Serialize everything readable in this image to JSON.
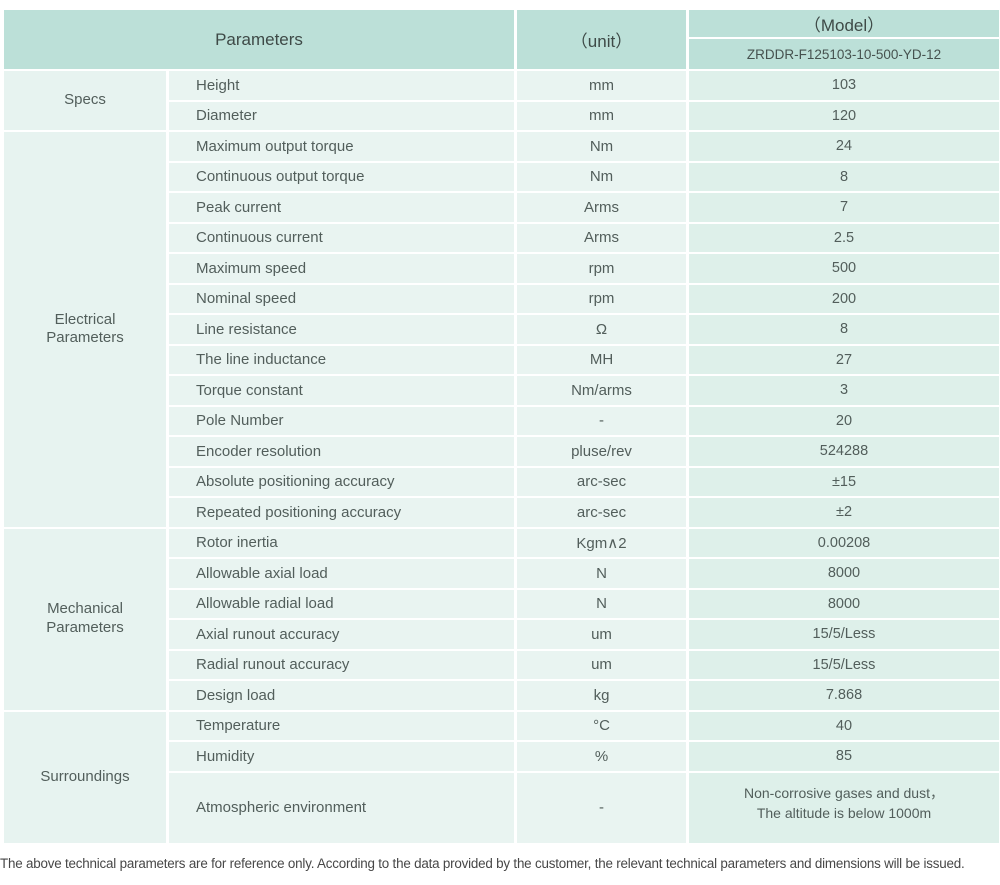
{
  "header": {
    "parameters_label": "Parameters",
    "unit_label": "（unit）",
    "model_label": "（Model）",
    "model_number": "ZRDDR-F125103-10-500-YD-12"
  },
  "sections": [
    {
      "group": "Specs",
      "rows": [
        {
          "param": "Height",
          "unit": "mm",
          "value": "103"
        },
        {
          "param": "Diameter",
          "unit": "mm",
          "value": "120"
        }
      ]
    },
    {
      "group": "Electrical\nParameters",
      "rows": [
        {
          "param": "Maximum output torque",
          "unit": "Nm",
          "value": "24"
        },
        {
          "param": "Continuous output torque",
          "unit": "Nm",
          "value": "8"
        },
        {
          "param": "Peak current",
          "unit": "Arms",
          "value": "7"
        },
        {
          "param": "Continuous current",
          "unit": "Arms",
          "value": "2.5"
        },
        {
          "param": "Maximum speed",
          "unit": "rpm",
          "value": "500"
        },
        {
          "param": "Nominal speed",
          "unit": "rpm",
          "value": "200"
        },
        {
          "param": "Line resistance",
          "unit": "Ω",
          "value": "8"
        },
        {
          "param": "The line inductance",
          "unit": "MH",
          "value": "27"
        },
        {
          "param": "Torque constant",
          "unit": "Nm/arms",
          "value": "3"
        },
        {
          "param": "Pole Number",
          "unit": "-",
          "value": "20"
        },
        {
          "param": "Encoder resolution",
          "unit": "pluse/rev",
          "value": "524288"
        },
        {
          "param": "Absolute positioning accuracy",
          "unit": "arc-sec",
          "value": "±15"
        },
        {
          "param": "Repeated positioning accuracy",
          "unit": "arc-sec",
          "value": "±2"
        }
      ]
    },
    {
      "group": "Mechanical\nParameters",
      "rows": [
        {
          "param": "Rotor inertia",
          "unit": "Kgm∧2",
          "value": "0.00208"
        },
        {
          "param": "Allowable axial load",
          "unit": "N",
          "value": "8000"
        },
        {
          "param": "Allowable radial load",
          "unit": "N",
          "value": "8000"
        },
        {
          "param": "Axial runout accuracy",
          "unit": "um",
          "value": "15/5/Less"
        },
        {
          "param": "Radial runout accuracy",
          "unit": "um",
          "value": "15/5/Less"
        },
        {
          "param": "Design load",
          "unit": "kg",
          "value": "7.868"
        }
      ]
    },
    {
      "group": "Surroundings",
      "rows": [
        {
          "param": "Temperature",
          "unit": "°C",
          "value": "40"
        },
        {
          "param": "Humidity",
          "unit": "%",
          "value": "85"
        },
        {
          "param": "Atmospheric environment",
          "unit": "-",
          "value": "Non-corrosive gases and dust，\nThe altitude is below 1000m"
        }
      ]
    }
  ],
  "footer_note": "The above technical parameters are for reference only. According to the data provided by the customer, the relevant technical parameters and dimensions will be issued.",
  "colors": {
    "header_bg": "#bce0d8",
    "cell_bg": "#e9f4f1",
    "value_cell_bg": "#def0ea",
    "grid_line": "#ffffff",
    "body_text": "#525e5b",
    "header_text": "#3e4a47",
    "footnote_text": "#474747"
  }
}
